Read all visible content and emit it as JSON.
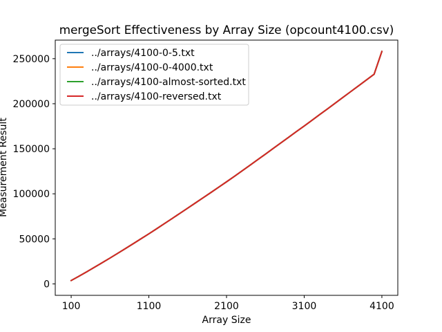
{
  "chart_data": {
    "type": "line",
    "title": "mergeSort Effectiveness by Array Size (opcount4100.csv)",
    "xlabel": "Array Size",
    "ylabel": "Measurement Result",
    "xlim": [
      -105,
      4305
    ],
    "ylim": [
      -12700,
      270600
    ],
    "xticks": [
      100,
      1100,
      2100,
      3100,
      4100
    ],
    "xtick_labels": [
      "100",
      "1100",
      "2100",
      "3100",
      "4100"
    ],
    "yticks": [
      0,
      50000,
      100000,
      150000,
      200000,
      250000
    ],
    "ytick_labels": [
      "0",
      "50000",
      "100000",
      "150000",
      "200000",
      "250000"
    ],
    "grid": false,
    "legend_position": "upper left",
    "x": [
      100,
      200,
      300,
      400,
      500,
      600,
      700,
      800,
      900,
      1000,
      1100,
      1200,
      1300,
      1400,
      1500,
      1600,
      1700,
      1800,
      1900,
      2000,
      2100,
      2200,
      2300,
      2400,
      2500,
      2600,
      2700,
      2800,
      2900,
      3000,
      3100,
      3200,
      3300,
      3400,
      3500,
      3600,
      3700,
      3800,
      3900,
      4000,
      4100
    ],
    "series": [
      {
        "name": "../arrays/4100-0-5.txt",
        "color": "#1f77b4",
        "values": [
          3756,
          8512,
          13400,
          18456,
          23544,
          28720,
          34000,
          39300,
          44700,
          50144,
          55600,
          61200,
          66900,
          72600,
          78350,
          84100,
          89900,
          95700,
          101500,
          107400,
          113300,
          119300,
          125400,
          131600,
          137800,
          144000,
          150300,
          156500,
          162800,
          169100,
          175300,
          181600,
          188000,
          194300,
          200700,
          207100,
          213500,
          219900,
          226300,
          232700,
          258000
        ]
      },
      {
        "name": "../arrays/4100-0-4000.txt",
        "color": "#ff7f0e",
        "values": [
          3756,
          8512,
          13400,
          18456,
          23544,
          28720,
          34000,
          39300,
          44700,
          50144,
          55600,
          61200,
          66900,
          72600,
          78350,
          84100,
          89900,
          95700,
          101500,
          107400,
          113300,
          119300,
          125400,
          131600,
          137800,
          144000,
          150300,
          156500,
          162800,
          169100,
          175300,
          181600,
          188000,
          194300,
          200700,
          207100,
          213500,
          219900,
          226300,
          232700,
          258000
        ]
      },
      {
        "name": "../arrays/4100-almost-sorted.txt",
        "color": "#2ca02c",
        "values": [
          3756,
          8512,
          13400,
          18456,
          23544,
          28720,
          34000,
          39300,
          44700,
          50144,
          55600,
          61200,
          66900,
          72600,
          78350,
          84100,
          89900,
          95700,
          101500,
          107400,
          113300,
          119300,
          125400,
          131600,
          137800,
          144000,
          150300,
          156500,
          162800,
          169100,
          175300,
          181600,
          188000,
          194300,
          200700,
          207100,
          213500,
          219900,
          226300,
          232700,
          258000
        ]
      },
      {
        "name": "../arrays/4100-reversed.txt",
        "color": "#d62728",
        "values": [
          3756,
          8512,
          13400,
          18456,
          23544,
          28720,
          34000,
          39300,
          44700,
          50144,
          55600,
          61200,
          66900,
          72600,
          78350,
          84100,
          89900,
          95700,
          101500,
          107400,
          113300,
          119300,
          125400,
          131600,
          137800,
          144000,
          150300,
          156500,
          162800,
          169100,
          175300,
          181600,
          188000,
          194300,
          200700,
          207100,
          213500,
          219900,
          226300,
          232700,
          258000
        ]
      }
    ]
  }
}
